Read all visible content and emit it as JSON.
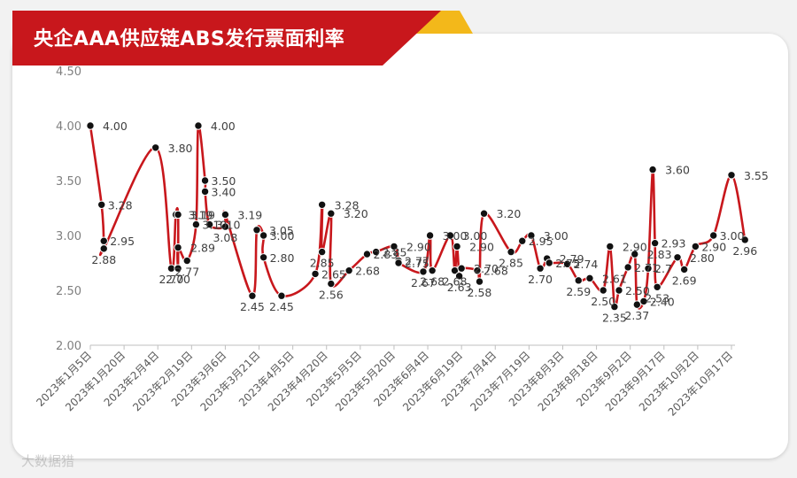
{
  "page": {
    "title": "央企AAA供应链ABS发行票面利率",
    "watermark": "大数据猎",
    "colors": {
      "banner": "#c8171c",
      "accent": "#f3b81a",
      "line": "#c8171c",
      "marker": "#111111"
    }
  },
  "chart_data": {
    "type": "line",
    "title": "央企AAA供应链ABS发行票面利率",
    "xlabel": "",
    "ylabel": "",
    "ylim": [
      2.0,
      4.5
    ],
    "yticks": [
      "2.00",
      "2.50",
      "3.00",
      "3.50",
      "4.00",
      "4.50"
    ],
    "grid": false,
    "legend": "none",
    "x_tick_labels": [
      "2023年1月5日",
      "2023年1月20日",
      "2023年2月4日",
      "2023年2月19日",
      "2023年3月6日",
      "2023年3月21日",
      "2023年4月5日",
      "2023年4月20日",
      "2023年5月5日",
      "2023年5月20日",
      "2023年6月4日",
      "2023年6月19日",
      "2023年7月4日",
      "2023年7月19日",
      "2023年8月3日",
      "2023年8月18日",
      "2023年9月2日",
      "2023年9月17日",
      "2023年10月2日",
      "2023年10月17日"
    ],
    "series": [
      {
        "points": [
          {
            "date": "2023-01-05",
            "y": 4.0,
            "label": "4.00"
          },
          {
            "date": "2023-01-10",
            "y": 3.28,
            "label": "3.28"
          },
          {
            "date": "2023-01-11",
            "y": 2.95,
            "label": "2.95"
          },
          {
            "date": "2023-01-11",
            "y": 2.88,
            "label": "2.88"
          },
          {
            "date": "2023-02-03",
            "y": 3.8,
            "label": "3.80"
          },
          {
            "date": "2023-02-10",
            "y": 2.7,
            "label": "2.70"
          },
          {
            "date": "2023-02-12",
            "y": 3.19,
            "label": "3.19"
          },
          {
            "date": "2023-02-13",
            "y": 3.19,
            "label": "3.19"
          },
          {
            "date": "2023-02-13",
            "y": 2.7,
            "label": "2.70"
          },
          {
            "date": "2023-02-13",
            "y": 2.89,
            "label": "2.89"
          },
          {
            "date": "2023-02-17",
            "y": 2.77,
            "label": "2.77"
          },
          {
            "date": "2023-02-21",
            "y": 3.1,
            "label": "3.10"
          },
          {
            "date": "2023-02-22",
            "y": 4.0,
            "label": "4.00"
          },
          {
            "date": "2023-02-25",
            "y": 3.5,
            "label": "3.50"
          },
          {
            "date": "2023-02-25",
            "y": 3.4,
            "label": "3.40"
          },
          {
            "date": "2023-02-27",
            "y": 3.1,
            "label": "3.10"
          },
          {
            "date": "2023-03-06",
            "y": 3.08,
            "label": "3.08"
          },
          {
            "date": "2023-03-06",
            "y": 3.19,
            "label": "3.19"
          },
          {
            "date": "2023-03-18",
            "y": 2.45,
            "label": "2.45"
          },
          {
            "date": "2023-03-20",
            "y": 3.05,
            "label": "3.05"
          },
          {
            "date": "2023-03-23",
            "y": 3.0,
            "label": "3.00"
          },
          {
            "date": "2023-03-23",
            "y": 2.8,
            "label": "2.80"
          },
          {
            "date": "2023-03-31",
            "y": 2.45,
            "label": "2.45"
          },
          {
            "date": "2023-04-15",
            "y": 2.65,
            "label": "2.65"
          },
          {
            "date": "2023-04-18",
            "y": 3.28,
            "label": "3.28"
          },
          {
            "date": "2023-04-18",
            "y": 2.85,
            "label": "2.85"
          },
          {
            "date": "2023-04-22",
            "y": 3.2,
            "label": "3.20"
          },
          {
            "date": "2023-04-22",
            "y": 2.56,
            "label": "2.56"
          },
          {
            "date": "2023-04-30",
            "y": 2.68,
            "label": "2.68"
          },
          {
            "date": "2023-05-08",
            "y": 2.83,
            "label": "2.83"
          },
          {
            "date": "2023-05-12",
            "y": 2.85,
            "label": "2.85"
          },
          {
            "date": "2023-05-20",
            "y": 2.9,
            "label": "2.90"
          },
          {
            "date": "2023-05-22",
            "y": 2.77,
            "label": "2.77"
          },
          {
            "date": "2023-05-22",
            "y": 2.75,
            "label": "2.75"
          },
          {
            "date": "2023-06-02",
            "y": 2.67,
            "label": "2.67"
          },
          {
            "date": "2023-06-05",
            "y": 3.0,
            "label": "3.00"
          },
          {
            "date": "2023-06-06",
            "y": 2.68,
            "label": "2.68"
          },
          {
            "date": "2023-06-14",
            "y": 3.0,
            "label": "3.00"
          },
          {
            "date": "2023-06-16",
            "y": 2.68,
            "label": "2.68"
          },
          {
            "date": "2023-06-17",
            "y": 2.9,
            "label": "2.90"
          },
          {
            "date": "2023-06-18",
            "y": 2.63,
            "label": "2.63"
          },
          {
            "date": "2023-06-19",
            "y": 2.7,
            "label": "2.70"
          },
          {
            "date": "2023-06-26",
            "y": 2.68,
            "label": "2.68"
          },
          {
            "date": "2023-06-27",
            "y": 2.58,
            "label": "2.58"
          },
          {
            "date": "2023-06-29",
            "y": 3.2,
            "label": "3.20"
          },
          {
            "date": "2023-07-11",
            "y": 2.85,
            "label": "2.85"
          },
          {
            "date": "2023-07-16",
            "y": 2.95,
            "label": "2.95"
          },
          {
            "date": "2023-07-20",
            "y": 3.0,
            "label": "3.00"
          },
          {
            "date": "2023-07-24",
            "y": 2.7,
            "label": "2.70"
          },
          {
            "date": "2023-07-27",
            "y": 2.79,
            "label": "2.79"
          },
          {
            "date": "2023-07-28",
            "y": 2.75,
            "label": "2.75"
          },
          {
            "date": "2023-08-05",
            "y": 2.74,
            "label": "2.74"
          },
          {
            "date": "2023-08-10",
            "y": 2.59,
            "label": "2.59"
          },
          {
            "date": "2023-08-15",
            "y": 2.61,
            "label": "2.61"
          },
          {
            "date": "2023-08-21",
            "y": 2.5,
            "label": "2.50"
          },
          {
            "date": "2023-08-24",
            "y": 2.9,
            "label": "2.90"
          },
          {
            "date": "2023-08-26",
            "y": 2.35,
            "label": "2.35"
          },
          {
            "date": "2023-08-28",
            "y": 2.5,
            "label": "2.50"
          },
          {
            "date": "2023-09-01",
            "y": 2.71,
            "label": "2.71"
          },
          {
            "date": "2023-09-04",
            "y": 2.83,
            "label": "2.83"
          },
          {
            "date": "2023-09-05",
            "y": 2.37,
            "label": "2.37"
          },
          {
            "date": "2023-09-08",
            "y": 2.4,
            "label": "2.40"
          },
          {
            "date": "2023-09-10",
            "y": 2.7,
            "label": "2.7"
          },
          {
            "date": "2023-09-12",
            "y": 3.6,
            "label": "3.60"
          },
          {
            "date": "2023-09-13",
            "y": 2.93,
            "label": "2.93"
          },
          {
            "date": "2023-09-14",
            "y": 2.53,
            "label": "2.53"
          },
          {
            "date": "2023-09-23",
            "y": 2.8,
            "label": "2.80"
          },
          {
            "date": "2023-09-26",
            "y": 2.69,
            "label": "2.69"
          },
          {
            "date": "2023-10-01",
            "y": 2.9,
            "label": "2.90"
          },
          {
            "date": "2023-10-09",
            "y": 3.0,
            "label": "3.00"
          },
          {
            "date": "2023-10-17",
            "y": 3.55,
            "label": "3.55"
          },
          {
            "date": "2023-10-23",
            "y": 2.96,
            "label": "2.96"
          }
        ]
      }
    ]
  }
}
